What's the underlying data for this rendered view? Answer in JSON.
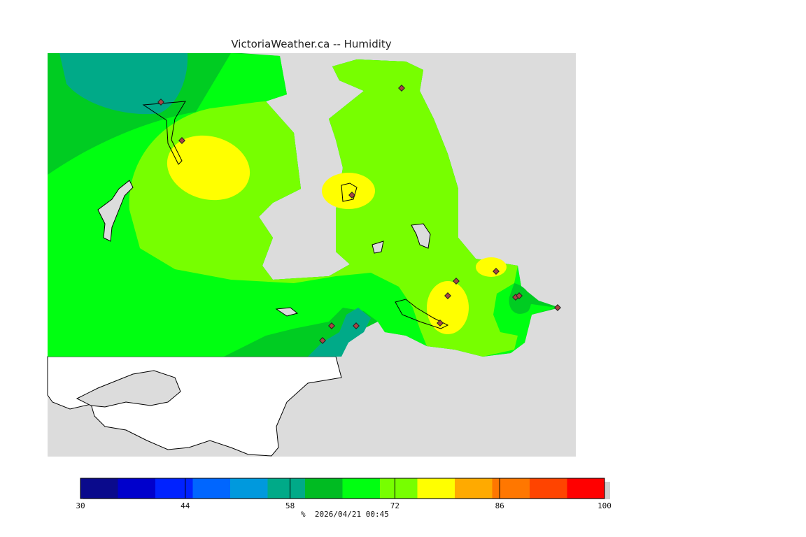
{
  "title": "VictoriaWeather.ca -- Humidity",
  "colorbar": {
    "ticks": [
      30,
      44,
      58,
      72,
      86,
      100
    ],
    "range": [
      30,
      100
    ],
    "colors": [
      "#0a0a8c",
      "#0000cc",
      "#0022ff",
      "#0066ff",
      "#0099dd",
      "#00aa88",
      "#00bb22",
      "#00ff11",
      "#77ff00",
      "#ffff00",
      "#ffaa00",
      "#ff7700",
      "#ff4400",
      "#ff0000"
    ],
    "unit": "%",
    "timestamp": "2026/04/21 00:45"
  },
  "map": {
    "land_color": "#dcdcdc",
    "water_color": "#ffffff",
    "station_count": 14
  }
}
